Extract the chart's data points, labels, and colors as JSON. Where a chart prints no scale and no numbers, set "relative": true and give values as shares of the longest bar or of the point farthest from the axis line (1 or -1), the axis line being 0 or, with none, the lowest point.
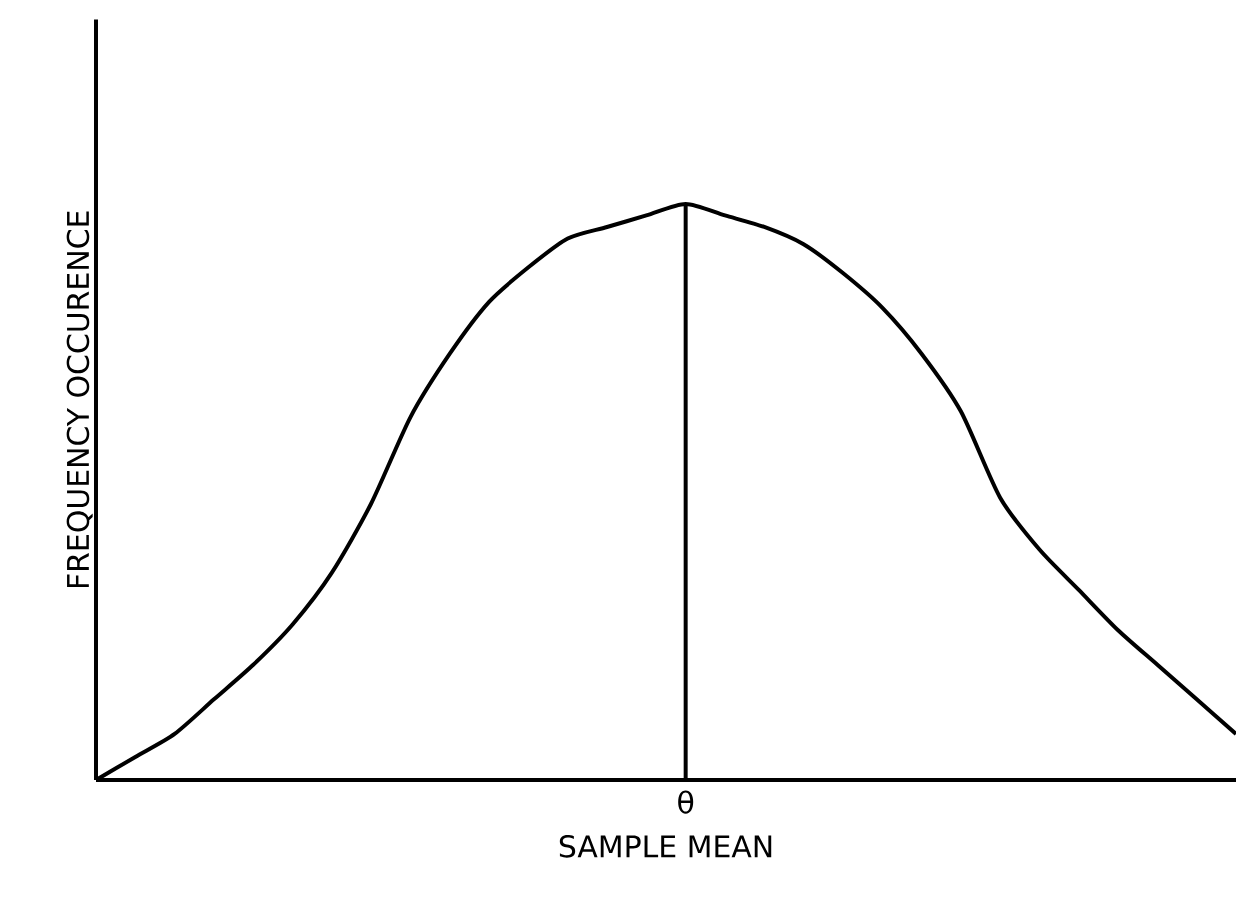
{
  "chart_data": {
    "type": "line",
    "relative": true,
    "xlabel": "SAMPLE MEAN",
    "ylabel": "FREQUENCY OCCURENCE",
    "categories": [
      null,
      null,
      null,
      null,
      null,
      null,
      null,
      null,
      null,
      null,
      null,
      null,
      null,
      null,
      null,
      null,
      null,
      null,
      null,
      null,
      null,
      null,
      null,
      null,
      null,
      null,
      null,
      null,
      null,
      null
    ],
    "series": [
      {
        "color": "#000000",
        "values": [
          0,
          0.04,
          0.08,
          0.14,
          0.2,
          0.27,
          0.36,
          0.48,
          0.63,
          0.74,
          0.83,
          0.89,
          0.94,
          0.96,
          0.98,
          1,
          0.98,
          0.96,
          0.93,
          0.88,
          0.82,
          0.74,
          0.64,
          0.49,
          0.4,
          0.33,
          0.26,
          0.2,
          0.14,
          0.08
        ]
      }
    ],
    "annotations": [
      "θ"
    ],
    "legend": false,
    "marker": "none",
    "line_style": "solid"
  }
}
